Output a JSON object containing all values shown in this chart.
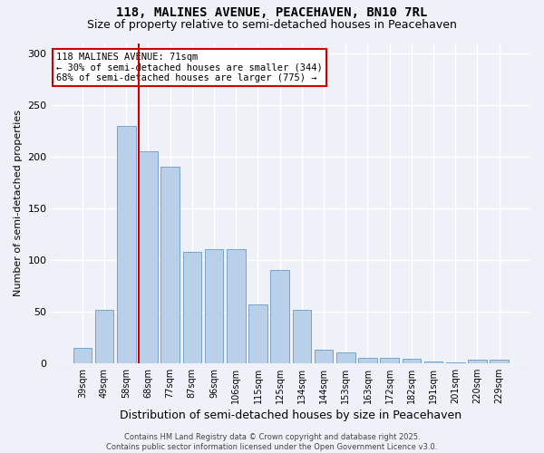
{
  "title": "118, MALINES AVENUE, PEACEHAVEN, BN10 7RL",
  "subtitle": "Size of property relative to semi-detached houses in Peacehaven",
  "xlabel": "Distribution of semi-detached houses by size in Peacehaven",
  "ylabel": "Number of semi-detached properties",
  "categories": [
    "39sqm",
    "49sqm",
    "58sqm",
    "68sqm",
    "77sqm",
    "87sqm",
    "96sqm",
    "106sqm",
    "115sqm",
    "125sqm",
    "134sqm",
    "144sqm",
    "153sqm",
    "163sqm",
    "172sqm",
    "182sqm",
    "191sqm",
    "201sqm",
    "220sqm",
    "229sqm"
  ],
  "values": [
    15,
    52,
    230,
    205,
    190,
    108,
    110,
    110,
    57,
    90,
    52,
    13,
    10,
    5,
    5,
    4,
    2,
    1,
    3,
    3
  ],
  "bar_color": "#b8d0e8",
  "bar_edge_color": "#6699cc",
  "vline_color": "#cc0000",
  "annotation_text": "118 MALINES AVENUE: 71sqm\n← 30% of semi-detached houses are smaller (344)\n68% of semi-detached houses are larger (775) →",
  "annotation_box_color": "#ffffff",
  "annotation_box_edge": "#cc0000",
  "footer": "Contains HM Land Registry data © Crown copyright and database right 2025.\nContains public sector information licensed under the Open Government Licence v3.0.",
  "ylim": [
    0,
    310
  ],
  "yticks": [
    0,
    50,
    100,
    150,
    200,
    250,
    300
  ],
  "bg_color": "#eef2f8",
  "plot_bg": "#eef2f8",
  "grid_color": "#ffffff",
  "title_fontsize": 10,
  "subtitle_fontsize": 9,
  "footer_fontsize": 6,
  "ylabel_fontsize": 8,
  "xlabel_fontsize": 9
}
